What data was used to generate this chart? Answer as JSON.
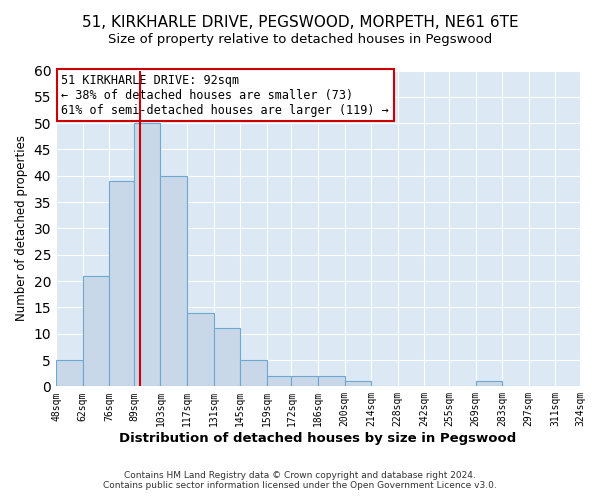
{
  "title_line1": "51, KIRKHARLE DRIVE, PEGSWOOD, MORPETH, NE61 6TE",
  "title_line2": "Size of property relative to detached houses in Pegswood",
  "xlabel": "Distribution of detached houses by size in Pegswood",
  "ylabel": "Number of detached properties",
  "bin_edges": [
    48,
    62,
    76,
    89,
    103,
    117,
    131,
    145,
    159,
    172,
    186,
    200,
    214,
    228,
    242,
    255,
    269,
    283,
    297,
    311,
    324
  ],
  "bin_heights": [
    5,
    21,
    39,
    50,
    40,
    14,
    11,
    5,
    2,
    2,
    2,
    1,
    0,
    0,
    0,
    0,
    1,
    0,
    0,
    0
  ],
  "bar_color": "#c8d8e8",
  "bar_edge_color": "#6ea8d0",
  "property_line_x": 92,
  "property_line_color": "#cc0000",
  "annotation_text": "51 KIRKHARLE DRIVE: 92sqm\n← 38% of detached houses are smaller (73)\n61% of semi-detached houses are larger (119) →",
  "annotation_box_facecolor": "#ffffff",
  "annotation_box_edgecolor": "#cc0000",
  "xlim_left": 48,
  "xlim_right": 324,
  "ylim_top": 60,
  "yticks": [
    0,
    5,
    10,
    15,
    20,
    25,
    30,
    35,
    40,
    45,
    50,
    55,
    60
  ],
  "tick_labels": [
    "48sqm",
    "62sqm",
    "76sqm",
    "89sqm",
    "103sqm",
    "117sqm",
    "131sqm",
    "145sqm",
    "159sqm",
    "172sqm",
    "186sqm",
    "200sqm",
    "214sqm",
    "228sqm",
    "242sqm",
    "255sqm",
    "269sqm",
    "283sqm",
    "297sqm",
    "311sqm",
    "324sqm"
  ],
  "footer_text": "Contains HM Land Registry data © Crown copyright and database right 2024.\nContains public sector information licensed under the Open Government Licence v3.0.",
  "fig_bg_color": "#ffffff",
  "plot_bg_color": "#dce9f5",
  "grid_color": "#ffffff",
  "title1_fontsize": 11,
  "title2_fontsize": 9.5,
  "annotation_fontsize": 8.5,
  "ylabel_fontsize": 8.5,
  "xlabel_fontsize": 9.5,
  "xtick_fontsize": 7,
  "ytick_fontsize": 8
}
